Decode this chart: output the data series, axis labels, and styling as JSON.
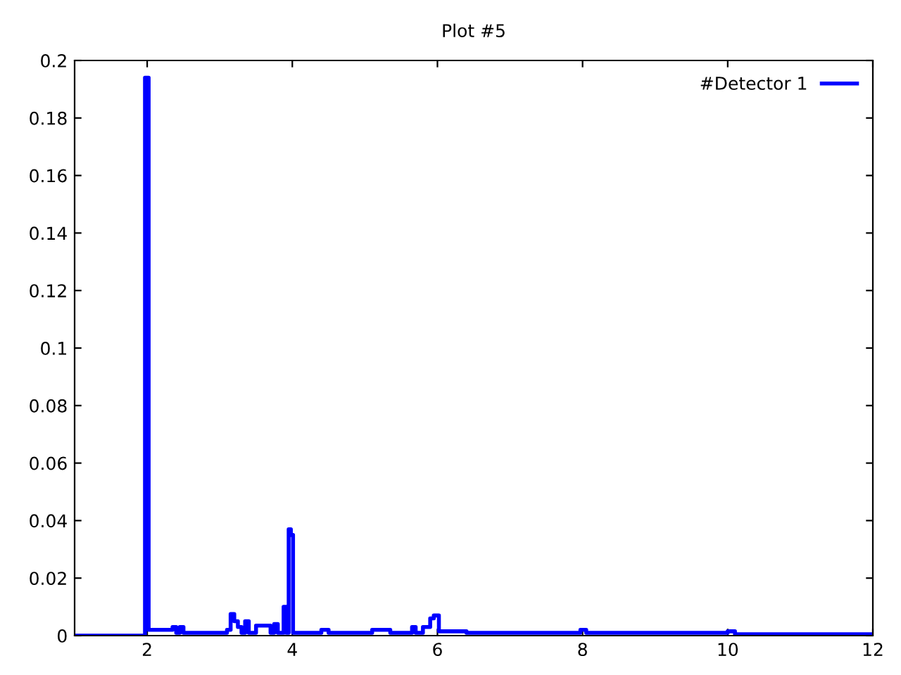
{
  "chart_data": {
    "type": "step",
    "title": "Plot #5",
    "xlim": [
      1,
      12
    ],
    "xticks": [
      2,
      4,
      6,
      8,
      10,
      12
    ],
    "ylim": [
      0,
      0.2
    ],
    "yticks": [
      0,
      0.02,
      0.04,
      0.06,
      0.08,
      0.1,
      0.12,
      0.14,
      0.16,
      0.18,
      0.2
    ],
    "grid": false,
    "legend": "top right",
    "line_style": "solid",
    "marker": "none",
    "series": [
      {
        "name": "#Detector 1",
        "color": "#0000ff",
        "x": [
          1.0,
          1.97,
          2.02,
          2.35,
          2.4,
          2.45,
          2.5,
          3.1,
          3.15,
          3.2,
          3.25,
          3.3,
          3.35,
          3.4,
          3.5,
          3.7,
          3.75,
          3.8,
          3.88,
          3.92,
          3.95,
          3.98,
          4.01,
          4.4,
          4.5,
          5.1,
          5.35,
          5.65,
          5.7,
          5.8,
          5.9,
          5.95,
          6.02,
          6.4,
          7.97,
          8.05,
          10.0,
          10.1,
          12.0
        ],
        "values": [
          0,
          0.194,
          0.002,
          0.003,
          0.001,
          0.003,
          0.001,
          0.002,
          0.0075,
          0.005,
          0.003,
          0.001,
          0.005,
          0.001,
          0.0035,
          0.001,
          0.004,
          0.001,
          0.01,
          0.001,
          0.037,
          0.035,
          0.001,
          0.002,
          0.001,
          0.002,
          0.001,
          0.003,
          0.001,
          0.003,
          0.006,
          0.007,
          0.0015,
          0.001,
          0.002,
          0.001,
          0.0015,
          0.0005,
          0.0005
        ]
      }
    ]
  }
}
